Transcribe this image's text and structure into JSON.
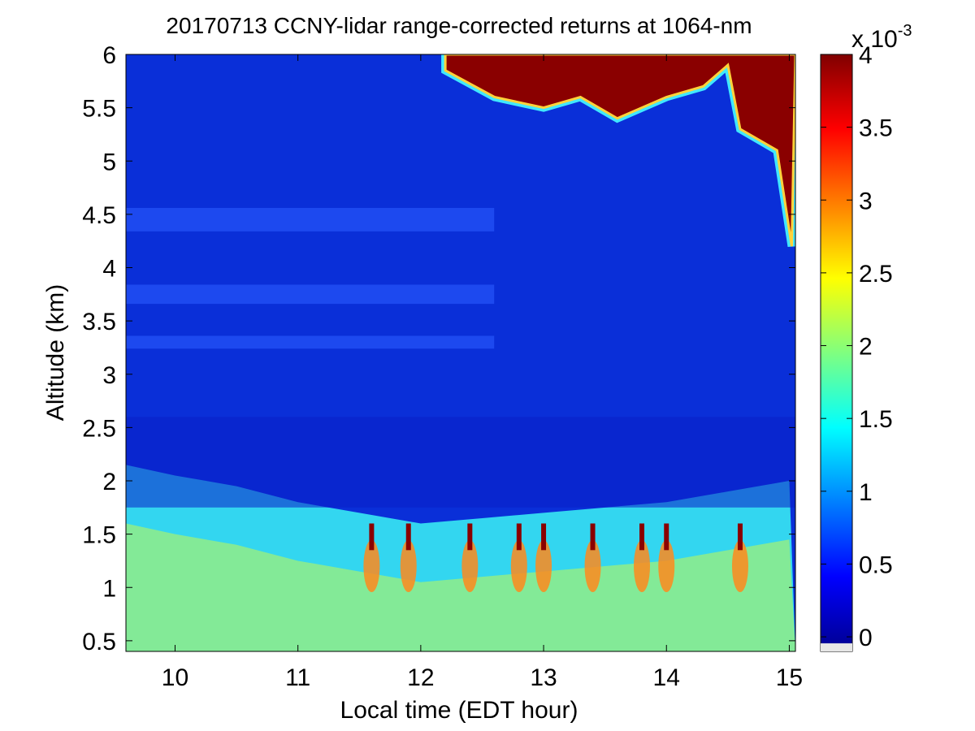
{
  "chart_data": {
    "type": "heatmap",
    "title": "20170713 CCNY-lidar range-corrected returns at 1064-nm",
    "xlabel": "Local time (EDT hour)",
    "ylabel": "Altitude (km)",
    "xlim": [
      9.6,
      15.05
    ],
    "ylim": [
      0.4,
      6.0
    ],
    "xticks": [
      10,
      11,
      12,
      13,
      14,
      15
    ],
    "xtick_labels": [
      "10",
      "11",
      "12",
      "13",
      "14",
      "15"
    ],
    "yticks": [
      0.5,
      1,
      1.5,
      2,
      2.5,
      3,
      3.5,
      4,
      4.5,
      5,
      5.5,
      6
    ],
    "ytick_labels": [
      "0.5",
      "1",
      "1.5",
      "2",
      "2.5",
      "3",
      "3.5",
      "4",
      "4.5",
      "5",
      "5.5",
      "6"
    ],
    "colormap": "jet",
    "colorbar": {
      "range": [
        -0.0001,
        0.004
      ],
      "ticks": [
        0,
        0.0005,
        0.001,
        0.0015,
        0.002,
        0.0025,
        0.003,
        0.0035,
        0.004
      ],
      "tick_labels": [
        "0",
        "0.5",
        "1",
        "1.5",
        "2",
        "2.5",
        "3",
        "3.5",
        "4"
      ],
      "exponent_base": "x 10",
      "exponent": "-3"
    },
    "features": {
      "boundary_layer_top_km": [
        [
          9.6,
          2.15
        ],
        [
          10.0,
          2.05
        ],
        [
          10.5,
          1.95
        ],
        [
          11.0,
          1.8
        ],
        [
          11.5,
          1.7
        ],
        [
          12.0,
          1.6
        ],
        [
          12.5,
          1.65
        ],
        [
          13.0,
          1.7
        ],
        [
          13.5,
          1.75
        ],
        [
          14.0,
          1.8
        ],
        [
          14.5,
          1.9
        ],
        [
          15.0,
          2.0
        ]
      ],
      "cloud_base_km": [
        [
          12.2,
          5.85
        ],
        [
          12.6,
          5.6
        ],
        [
          12.8,
          5.55
        ],
        [
          13.0,
          5.5
        ],
        [
          13.3,
          5.6
        ],
        [
          13.6,
          5.4
        ],
        [
          14.0,
          5.6
        ],
        [
          14.3,
          5.7
        ],
        [
          14.5,
          5.9
        ],
        [
          14.6,
          5.3
        ],
        [
          14.9,
          5.1
        ],
        [
          15.02,
          4.2
        ]
      ]
    }
  }
}
